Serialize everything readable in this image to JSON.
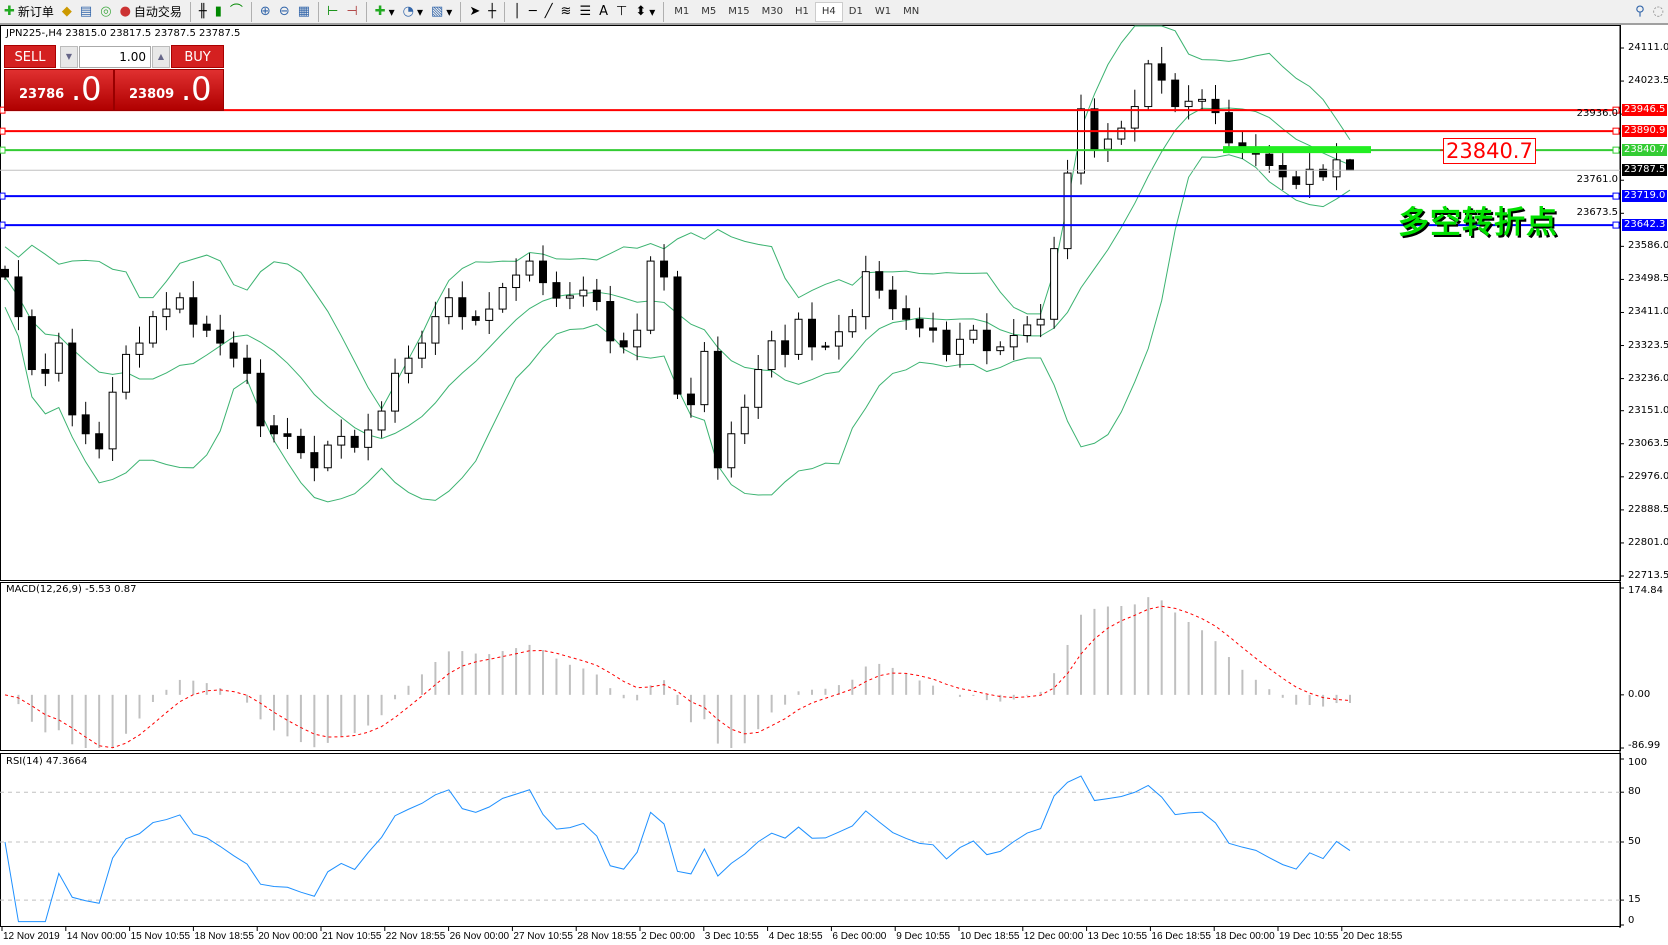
{
  "toolbar": {
    "new_order": "新订单",
    "auto_trading": "自动交易",
    "icons": [
      "new-order-icon",
      "market-watch-icon",
      "navigator-icon",
      "signals-icon",
      "auto-trading-icon",
      "bar-chart-icon",
      "candlestick-icon",
      "line-chart-icon",
      "zoom-in-icon",
      "zoom-out-icon",
      "tile-windows-icon",
      "auto-scroll-icon",
      "chart-shift-icon",
      "indicators-icon",
      "periods-icon",
      "templates-icon",
      "cursor-icon",
      "crosshair-icon",
      "vertical-line-icon",
      "horizontal-line-icon",
      "trendline-icon",
      "fibonacci-icon",
      "fibo-fan-icon",
      "text-icon",
      "text-label-icon",
      "arrows-icon"
    ],
    "timeframes": [
      "M1",
      "M5",
      "M15",
      "M30",
      "H1",
      "H4",
      "D1",
      "W1",
      "MN"
    ],
    "active_timeframe": "H4"
  },
  "chart": {
    "title": "JPN225-,H4  23815.0 23817.5 23787.5 23787.5",
    "symbol": "JPN225-",
    "period": "H4",
    "ohlc": {
      "open": 23815.0,
      "high": 23817.5,
      "low": 23787.5,
      "close": 23787.5
    },
    "price_ticks": [
      "24111.0",
      "24023.5",
      "23936.0",
      "23761.0",
      "23673.5",
      "23586.0",
      "23498.5",
      "23411.0",
      "23323.5",
      "23236.0",
      "23151.0",
      "23063.5",
      "22976.0",
      "22888.5",
      "22801.0",
      "22713.5"
    ],
    "price_range": [
      22713.5,
      24111.0
    ],
    "bid_tag": "23787.5",
    "levels": [
      {
        "price": "23946.5",
        "color": "#ff0000"
      },
      {
        "price": "23890.9",
        "color": "#ff0000"
      },
      {
        "price": "23840.7",
        "color": "#33cc33"
      },
      {
        "price": "23719.0",
        "color": "#0000ff"
      },
      {
        "price": "23642.3",
        "color": "#0000ff"
      }
    ],
    "level_label": "23840.7",
    "annotation": "多空转折点",
    "annotation_color": "#00e000",
    "bollinger_color": "#3cb371",
    "closes": [
      23505,
      23400,
      23260,
      23250,
      23330,
      23140,
      23090,
      23050,
      23200,
      23300,
      23330,
      23400,
      23420,
      23450,
      23380,
      23364,
      23330,
      23290,
      23250,
      23111,
      23090,
      23083,
      23040,
      23000,
      23060,
      23083,
      23054,
      23100,
      23150,
      23250,
      23290,
      23330,
      23400,
      23450,
      23400,
      23390,
      23420,
      23477,
      23510,
      23547,
      23490,
      23449,
      23455,
      23470,
      23440,
      23336,
      23320,
      23364,
      23547,
      23505,
      23195,
      23167,
      23308,
      23000,
      23090,
      23160,
      23260,
      23336,
      23300,
      23393,
      23320,
      23322,
      23360,
      23400,
      23519,
      23470,
      23421,
      23393,
      23370,
      23364,
      23300,
      23340,
      23364,
      23310,
      23320,
      23350,
      23378,
      23393,
      23580,
      23780,
      23950,
      23843,
      23870,
      23899,
      23956,
      24069,
      24026,
      23956,
      23970,
      23975,
      23940,
      23860,
      23843,
      23830,
      23800,
      23770,
      23750,
      23790,
      23770,
      23815,
      23787.5
    ],
    "time_labels": [
      "12 Nov 2019",
      "14 Nov 00:00",
      "15 Nov 10:55",
      "18 Nov 18:55",
      "20 Nov 00:00",
      "21 Nov 10:55",
      "22 Nov 18:55",
      "26 Nov 00:00",
      "27 Nov 10:55",
      "28 Nov 18:55",
      "2 Dec 00:00",
      "3 Dec 10:55",
      "4 Dec 18:55",
      "6 Dec 00:00",
      "9 Dec 10:55",
      "10 Dec 18:55",
      "12 Dec 00:00",
      "13 Dec 10:55",
      "16 Dec 18:55",
      "18 Dec 00:00",
      "19 Dec 10:55",
      "20 Dec 18:55"
    ]
  },
  "trade_panel": {
    "sell_label": "SELL",
    "buy_label": "BUY",
    "lot": "1.00",
    "sell_price_main": "23786",
    "sell_price_frac": ".0",
    "buy_price_main": "23809",
    "buy_price_frac": ".0"
  },
  "macd": {
    "label": "MACD(12,26,9) -5.53 0.87",
    "ticks": [
      "174.84",
      "0.00",
      "-86.99"
    ],
    "range": [
      -86.99,
      174.84
    ],
    "signal_color": "#ff0000",
    "hist_color": "#c0c0c0"
  },
  "rsi": {
    "label": "RSI(14) 47.3664",
    "ticks": [
      "100",
      "80",
      "50",
      "15",
      "0"
    ],
    "levels": [
      80,
      50,
      15
    ],
    "color": "#1e90ff"
  }
}
